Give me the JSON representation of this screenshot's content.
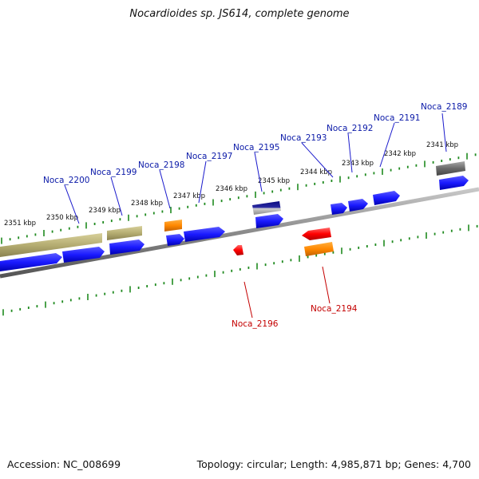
{
  "title": "Nocardioides sp. JS614, complete genome",
  "footer": {
    "accession": "Accession: NC_008699",
    "summary": "Topology: circular; Length: 4,985,871 bp; Genes: 4,700"
  },
  "kbp_labels": [
    "2351 kbp",
    "2350 kbp",
    "2349 kbp",
    "2348 kbp",
    "2347 kbp",
    "2346 kbp",
    "2345 kbp",
    "2344 kbp",
    "2343 kbp",
    "2342 kbp",
    "2341 kbp"
  ],
  "forward_gene_labels": [
    "Noca_2200",
    "Noca_2199",
    "Noca_2198",
    "Noca_2197",
    "Noca_2195",
    "Noca_2193",
    "Noca_2192",
    "Noca_2191",
    "Noca_2189"
  ],
  "reverse_gene_labels": [
    "Noca_2196",
    "Noca_2194"
  ],
  "colors": {
    "cds": "#1a1aff",
    "gene": "#a8a060",
    "rrna": "#ff8800",
    "trna": "#0a0a80",
    "misc": "#666666",
    "reverse_cds": "#ff0000",
    "ticks": "#1f8a1f",
    "backbone": "#888888"
  }
}
